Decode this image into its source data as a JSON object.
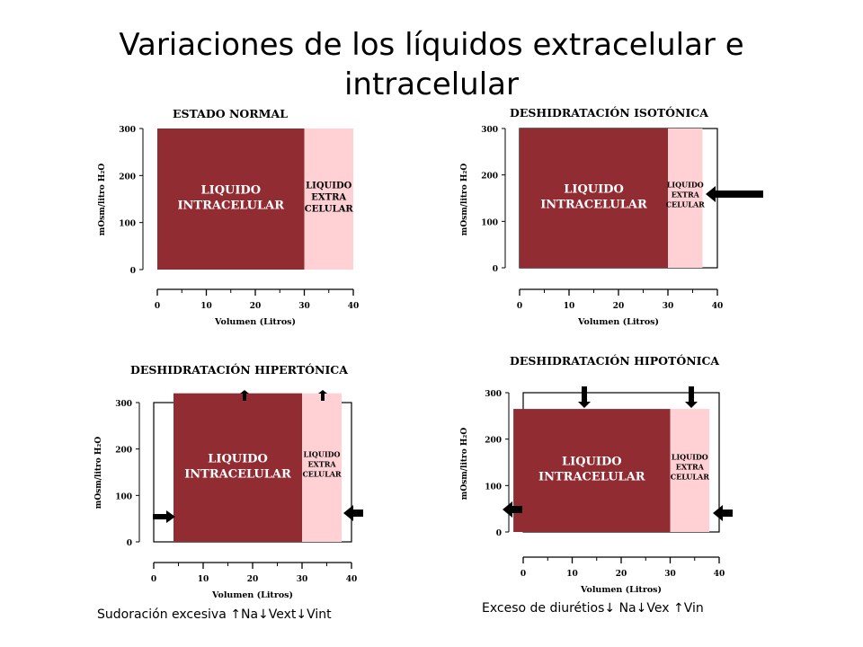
{
  "slide": {
    "title_line1": "Variaciones de los líquidos extracelular e",
    "title_line2": "intracelular"
  },
  "colors": {
    "intracellular": "#912c32",
    "extracellular": "#ffd0d4",
    "axis": "#000000"
  },
  "axis_text": {
    "ylabel": "mOsm/litro H₂O",
    "xlabel": "Volumen (Litros)",
    "y_ticks": [
      "0",
      "100",
      "200",
      "300"
    ],
    "x_ticks": [
      "0",
      "10",
      "20",
      "30",
      "40"
    ]
  },
  "panels": [
    {
      "title": "ESTADO NORMAL",
      "intra_label": [
        "LIQUIDO",
        "INTRACELULAR"
      ],
      "extra_label": [
        "LIQUIDO",
        "EXTRA",
        "CELULAR"
      ],
      "intra": {
        "x0": 0,
        "x1": 30,
        "osm": 300
      },
      "extra": {
        "x0": 30,
        "x1": 40,
        "osm": 300
      }
    },
    {
      "title": "DESHIDRATACIÓN ISOTÓNICA",
      "intra_label": [
        "LIQUIDO",
        "INTRACELULAR"
      ],
      "extra_label": [
        "LIQUIDO",
        "EXTRA",
        "CELULAR"
      ],
      "intra": {
        "x0": 0,
        "x1": 30,
        "osm": 300
      },
      "extra": {
        "x0": 30,
        "x1": 37,
        "osm": 300
      },
      "normal_outline": {
        "x0": 0,
        "x1": 40,
        "osm": 300
      },
      "arrows": [
        "left"
      ]
    },
    {
      "title": "DESHIDRATACIÓN HIPERTÓNICA",
      "intra_label": [
        "LIQUIDO",
        "INTRACELULAR"
      ],
      "extra_label": [
        "LIQUIDO",
        "EXTRA",
        "CELULAR"
      ],
      "intra": {
        "x0": 4,
        "x1": 30,
        "osm": 320
      },
      "extra": {
        "x0": 30,
        "x1": 38,
        "osm": 320
      },
      "normal_outline": {
        "x0": 0,
        "x1": 40,
        "osm": 300
      },
      "arrows": [
        "up",
        "up",
        "right",
        "left"
      ]
    },
    {
      "title": "DESHIDRATACIÓN HIPOTÓNICA",
      "intra_label": [
        "LIQUIDO",
        "INTRACELULAR"
      ],
      "extra_label": [
        "LIQUIDO",
        "EXTRA",
        "CELULAR"
      ],
      "intra": {
        "x0": -2,
        "x1": 30,
        "osm": 265
      },
      "extra": {
        "x0": 30,
        "x1": 38,
        "osm": 265
      },
      "normal_outline": {
        "x0": 0,
        "x1": 40,
        "osm": 300
      },
      "arrows": [
        "down",
        "down",
        "left",
        "left"
      ]
    }
  ],
  "captions": {
    "hypertonic": "Sudoración excesiva ↑Na↓Vext↓Vint",
    "hypotonic": "Exceso de diurétios↓ Na↓Vex ↑Vin"
  }
}
